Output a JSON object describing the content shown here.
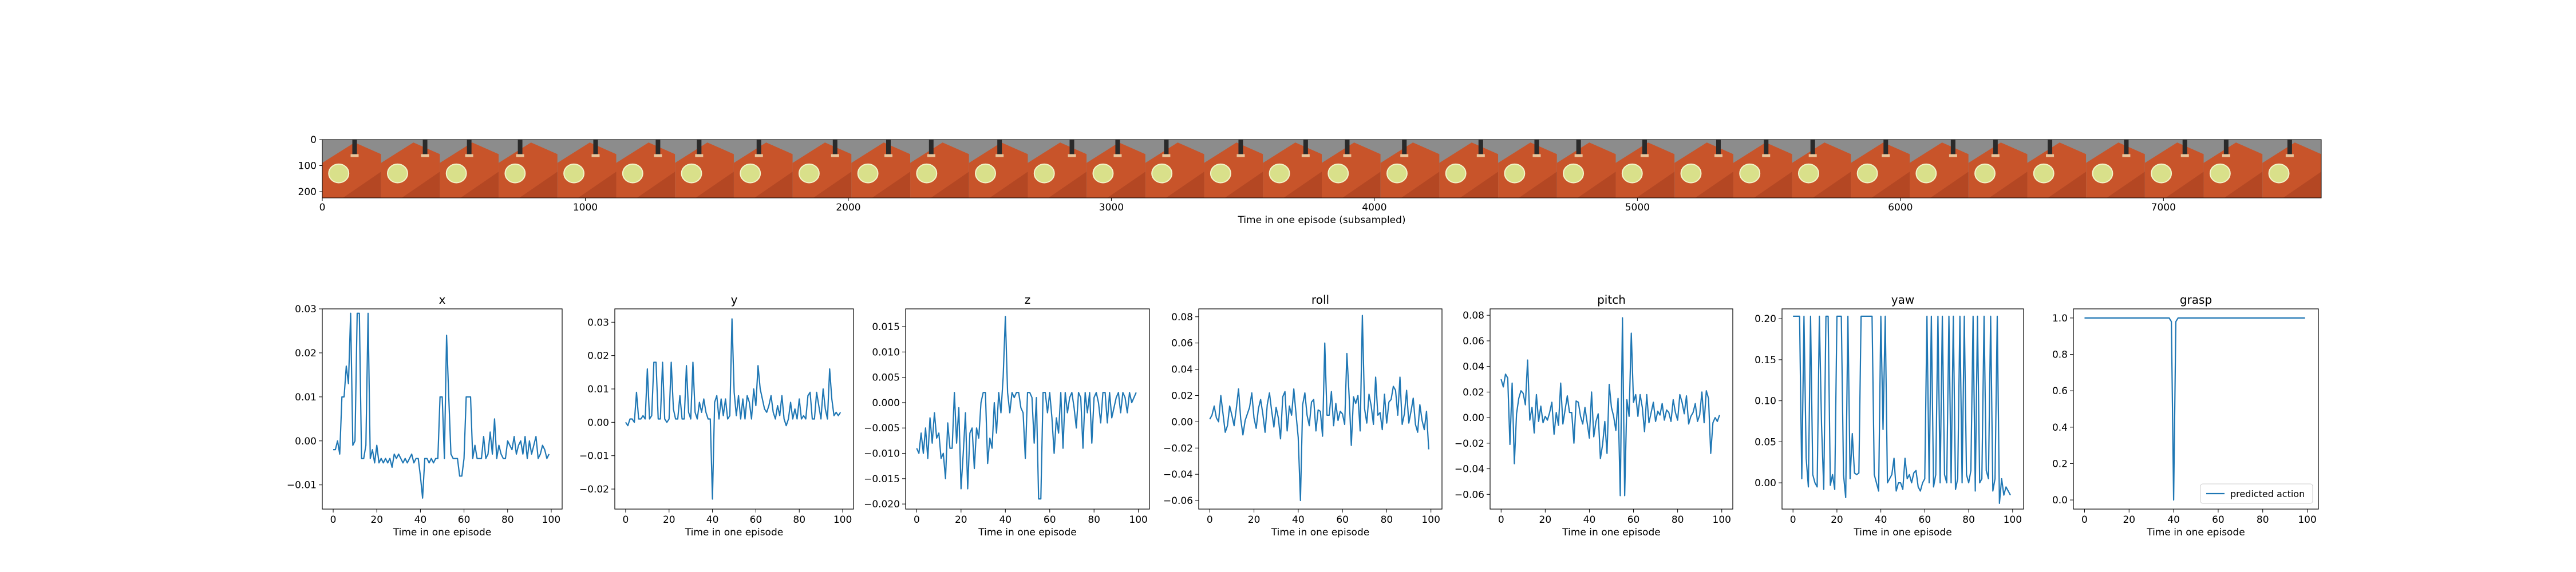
{
  "style": {
    "line_color": "#1f77b4",
    "frame_colors": {
      "bg": "#8c8c8c",
      "table": "#c8542a",
      "table_dark": "#a6401f",
      "plate": "#d9e08a",
      "plate_rim": "#f2f4c8",
      "gripper": "#2a2a2a"
    }
  },
  "image_strip": {
    "x_ticks": [
      "0",
      "1000",
      "2000",
      "3000",
      "4000",
      "5000",
      "6000",
      "7000"
    ],
    "y_ticks": [
      "0",
      "100",
      "200"
    ],
    "xlabel": "Time in one episode (subsampled)",
    "frame_count": 34
  },
  "chart_data": [
    {
      "type": "line",
      "title": "x",
      "xlabel": "Time in one episode",
      "xlim": [
        -5,
        105
      ],
      "ylim": [
        -0.0155,
        0.03
      ],
      "x_ticks": [
        "0",
        "20",
        "40",
        "60",
        "80",
        "100"
      ],
      "y_ticks": [
        {
          "v": -0.01,
          "label": "−0.01"
        },
        {
          "v": 0,
          "label": "0.00"
        },
        {
          "v": 0.01,
          "label": "0.01"
        },
        {
          "v": 0.02,
          "label": "0.02"
        },
        {
          "v": 0.03,
          "label": "0.03"
        }
      ],
      "series": [
        {
          "values": [
            -0.002,
            -0.002,
            0.0,
            -0.003,
            0.01,
            0.01,
            0.017,
            0.013,
            0.029,
            -0.001,
            0.0,
            0.029,
            0.029,
            -0.004,
            -0.004,
            -0.001,
            0.029,
            -0.004,
            -0.002,
            -0.005,
            -0.001,
            -0.005,
            -0.004,
            -0.005,
            -0.004,
            -0.005,
            -0.004,
            -0.006,
            -0.003,
            -0.004,
            -0.003,
            -0.004,
            -0.005,
            -0.004,
            -0.005,
            -0.004,
            -0.003,
            -0.005,
            -0.004,
            -0.004,
            -0.008,
            -0.013,
            -0.004,
            -0.004,
            -0.005,
            -0.004,
            -0.005,
            -0.004,
            -0.004,
            0.01,
            0.01,
            -0.004,
            0.024,
            0.01,
            -0.003,
            -0.004,
            -0.004,
            -0.004,
            -0.008,
            -0.008,
            -0.004,
            0.01,
            0.01,
            0.01,
            -0.004,
            -0.001,
            -0.004,
            -0.004,
            -0.004,
            0.001,
            -0.004,
            -0.003,
            0.002,
            -0.003,
            0.005,
            -0.004,
            -0.001,
            -0.003,
            -0.004,
            -0.004,
            0.0,
            -0.001,
            -0.002,
            0.001,
            -0.003,
            -0.001,
            0.0,
            -0.003,
            0.001,
            -0.004,
            0.0,
            -0.003,
            -0.001,
            0.001,
            -0.004,
            -0.003,
            -0.001,
            -0.002,
            -0.004,
            -0.003
          ]
        }
      ]
    },
    {
      "type": "line",
      "title": "y",
      "xlabel": "Time in one episode",
      "xlim": [
        -5,
        105
      ],
      "ylim": [
        -0.026,
        0.034
      ],
      "x_ticks": [
        "0",
        "20",
        "40",
        "60",
        "80",
        "100"
      ],
      "y_ticks": [
        {
          "v": -0.02,
          "label": "−0.02"
        },
        {
          "v": -0.01,
          "label": "−0.01"
        },
        {
          "v": 0,
          "label": "0.00"
        },
        {
          "v": 0.01,
          "label": "0.01"
        },
        {
          "v": 0.02,
          "label": "0.02"
        },
        {
          "v": 0.03,
          "label": "0.03"
        }
      ],
      "series": [
        {
          "values": [
            0.0,
            -0.001,
            0.001,
            0.001,
            0.0,
            0.009,
            0.001,
            0.001,
            0.002,
            0.001,
            0.016,
            0.001,
            0.002,
            0.018,
            0.018,
            0.001,
            0.001,
            0.018,
            0.001,
            0.0,
            0.001,
            0.018,
            0.004,
            0.001,
            0.001,
            0.008,
            0.001,
            0.001,
            0.017,
            0.003,
            0.001,
            0.018,
            0.003,
            0.001,
            0.006,
            0.003,
            0.007,
            0.003,
            0.001,
            0.001,
            -0.023,
            0.006,
            0.008,
            0.001,
            0.007,
            0.002,
            0.007,
            0.001,
            0.002,
            0.031,
            0.009,
            0.002,
            0.008,
            0.001,
            0.007,
            0.001,
            0.008,
            0.006,
            0.001,
            0.01,
            0.005,
            0.017,
            0.01,
            0.007,
            0.004,
            0.003,
            0.005,
            0.008,
            0.003,
            0.001,
            0.005,
            0.002,
            0.008,
            0.001,
            -0.001,
            0.001,
            0.006,
            0.001,
            0.004,
            0.001,
            0.007,
            0.001,
            0.002,
            0.001,
            0.008,
            0.009,
            0.001,
            0.001,
            0.009,
            0.005,
            0.001,
            0.01,
            0.004,
            0.001,
            0.016,
            0.007,
            0.002,
            0.003,
            0.002,
            0.003
          ]
        }
      ]
    },
    {
      "type": "line",
      "title": "z",
      "xlabel": "Time in one episode",
      "xlim": [
        -5,
        105
      ],
      "ylim": [
        -0.021,
        0.0185
      ],
      "x_ticks": [
        "0",
        "20",
        "40",
        "60",
        "80",
        "100"
      ],
      "y_ticks": [
        {
          "v": -0.02,
          "label": "−0.020"
        },
        {
          "v": -0.015,
          "label": "−0.015"
        },
        {
          "v": -0.01,
          "label": "−0.010"
        },
        {
          "v": -0.005,
          "label": "−0.005"
        },
        {
          "v": 0,
          "label": "0.000"
        },
        {
          "v": 0.005,
          "label": "0.005"
        },
        {
          "v": 0.01,
          "label": "0.010"
        },
        {
          "v": 0.015,
          "label": "0.015"
        }
      ],
      "series": [
        {
          "values": [
            -0.009,
            -0.01,
            -0.006,
            -0.01,
            -0.005,
            -0.011,
            -0.003,
            -0.008,
            -0.002,
            -0.007,
            -0.006,
            -0.011,
            -0.01,
            -0.015,
            -0.004,
            -0.009,
            -0.009,
            0.002,
            -0.008,
            -0.001,
            -0.017,
            -0.01,
            -0.002,
            -0.017,
            -0.006,
            -0.005,
            -0.013,
            -0.005,
            -0.007,
            0.0,
            0.002,
            0.002,
            -0.012,
            -0.007,
            -0.009,
            0.0,
            -0.006,
            0.002,
            -0.002,
            0.005,
            0.017,
            0.002,
            -0.002,
            0.002,
            0.001,
            0.002,
            0.002,
            -0.001,
            -0.002,
            -0.011,
            0.002,
            0.002,
            0.001,
            -0.008,
            0.001,
            -0.019,
            -0.019,
            0.002,
            0.002,
            -0.002,
            0.002,
            -0.003,
            -0.01,
            -0.003,
            -0.006,
            0.002,
            -0.009,
            0.002,
            -0.002,
            0.001,
            0.002,
            -0.001,
            -0.005,
            0.002,
            0.001,
            -0.009,
            0.002,
            -0.002,
            0.002,
            -0.008,
            0.001,
            0.002,
            0.0,
            -0.004,
            0.002,
            0.002,
            -0.004,
            0.002,
            -0.003,
            -0.001,
            0.001,
            0.002,
            -0.002,
            0.002,
            0.001,
            -0.002,
            0.002,
            0.0,
            0.001,
            0.002
          ]
        }
      ]
    },
    {
      "type": "line",
      "title": "roll",
      "xlabel": "Time in one episode",
      "xlim": [
        -5,
        105
      ],
      "ylim": [
        -0.0665,
        0.086
      ],
      "x_ticks": [
        "0",
        "20",
        "40",
        "60",
        "80",
        "100"
      ],
      "y_ticks": [
        {
          "v": -0.06,
          "label": "−0.06"
        },
        {
          "v": -0.04,
          "label": "−0.04"
        },
        {
          "v": -0.02,
          "label": "−0.02"
        },
        {
          "v": 0,
          "label": "0.00"
        },
        {
          "v": 0.02,
          "label": "0.02"
        },
        {
          "v": 0.04,
          "label": "0.04"
        },
        {
          "v": 0.06,
          "label": "0.06"
        },
        {
          "v": 0.08,
          "label": "0.08"
        }
      ],
      "series": [
        {
          "values": [
            0.002,
            0.005,
            0.012,
            0.003,
            0.0,
            0.02,
            0.006,
            -0.008,
            -0.003,
            0.012,
            0.005,
            -0.003,
            0.01,
            0.025,
            0.002,
            -0.01,
            0.001,
            0.006,
            0.011,
            0.022,
            0.003,
            -0.005,
            0.01,
            0.017,
            0.006,
            -0.008,
            0.013,
            0.022,
            0.008,
            -0.004,
            0.011,
            0.003,
            -0.013,
            0.019,
            0.023,
            -0.007,
            0.012,
            0.005,
            0.025,
            0.006,
            -0.012,
            -0.06,
            0.013,
            0.022,
            0.005,
            -0.003,
            0.015,
            0.017,
            -0.007,
            0.009,
            0.008,
            -0.011,
            0.06,
            0.005,
            0.005,
            0.023,
            -0.003,
            0.014,
            0.001,
            0.008,
            0.006,
            -0.002,
            0.052,
            0.02,
            -0.018,
            0.019,
            0.014,
            0.02,
            -0.007,
            0.081,
            0.01,
            -0.001,
            0.021,
            0.012,
            -0.002,
            0.034,
            0.005,
            0.007,
            -0.006,
            0.021,
            -0.001,
            0.015,
            0.017,
            0.027,
            0.024,
            0.005,
            0.034,
            -0.002,
            0.006,
            0.024,
            -0.001,
            0.008,
            0.018,
            -0.002,
            -0.008,
            0.013,
            0.001,
            -0.006,
            0.008,
            -0.021
          ]
        }
      ]
    },
    {
      "type": "line",
      "title": "pitch",
      "xlabel": "Time in one episode",
      "xlim": [
        -5,
        105
      ],
      "ylim": [
        -0.0715,
        0.085
      ],
      "x_ticks": [
        "0",
        "20",
        "40",
        "60",
        "80",
        "100"
      ],
      "y_ticks": [
        {
          "v": -0.06,
          "label": "−0.06"
        },
        {
          "v": -0.04,
          "label": "−0.04"
        },
        {
          "v": -0.02,
          "label": "−0.02"
        },
        {
          "v": 0,
          "label": "0.00"
        },
        {
          "v": 0.02,
          "label": "0.02"
        },
        {
          "v": 0.04,
          "label": "0.04"
        },
        {
          "v": 0.06,
          "label": "0.06"
        },
        {
          "v": 0.08,
          "label": "0.08"
        }
      ],
      "series": [
        {
          "values": [
            0.03,
            0.024,
            0.034,
            0.031,
            -0.021,
            0.027,
            -0.036,
            0.003,
            0.015,
            0.021,
            0.019,
            0.01,
            0.045,
            -0.002,
            0.008,
            -0.012,
            0.018,
            -0.003,
            0.009,
            -0.004,
            0.001,
            -0.002,
            0.004,
            0.012,
            -0.013,
            0.004,
            -0.006,
            0.027,
            -0.005,
            0.006,
            0.017,
            0.004,
            0.004,
            -0.02,
            0.013,
            0.012,
            0.001,
            -0.005,
            0.008,
            -0.004,
            -0.016,
            0.02,
            -0.015,
            -0.003,
            0.003,
            -0.032,
            -0.021,
            -0.003,
            -0.028,
            0.026,
            0.008,
            0.001,
            -0.01,
            0.015,
            -0.061,
            0.078,
            -0.061,
            0.014,
            0.001,
            0.066,
            0.012,
            0.018,
            0.001,
            0.018,
            0.008,
            -0.011,
            0.018,
            -0.004,
            0.004,
            0.012,
            -0.003,
            0.005,
            0.002,
            0.011,
            -0.002,
            0.006,
            0.004,
            -0.003,
            0.014,
            0.004,
            -0.002,
            0.018,
            0.012,
            0.003,
            0.017,
            -0.005,
            0.001,
            0.004,
            0.011,
            -0.003,
            0.002,
            0.02,
            -0.004,
            0.021,
            0.015,
            -0.028,
            -0.004,
            0.0,
            -0.003,
            0.002
          ]
        }
      ]
    },
    {
      "type": "line",
      "title": "yaw",
      "xlabel": "Time in one episode",
      "xlim": [
        -5,
        105
      ],
      "ylim": [
        -0.032,
        0.212
      ],
      "x_ticks": [
        "0",
        "20",
        "40",
        "60",
        "80",
        "100"
      ],
      "y_ticks": [
        {
          "v": 0,
          "label": "0.00"
        },
        {
          "v": 0.05,
          "label": "0.05"
        },
        {
          "v": 0.1,
          "label": "0.10"
        },
        {
          "v": 0.15,
          "label": "0.15"
        },
        {
          "v": 0.2,
          "label": "0.20"
        }
      ],
      "series": [
        {
          "values": [
            0.203,
            0.203,
            0.203,
            0.203,
            0.005,
            0.203,
            0.03,
            -0.005,
            0.203,
            0.01,
            0.0,
            -0.005,
            0.203,
            0.07,
            -0.008,
            0.203,
            0.203,
            -0.003,
            0.01,
            -0.008,
            0.203,
            0.203,
            0.203,
            0.01,
            -0.018,
            0.203,
            0.005,
            0.06,
            0.012,
            0.01,
            0.012,
            0.203,
            0.203,
            0.203,
            0.203,
            0.203,
            0.203,
            0.01,
            0.0,
            -0.01,
            0.203,
            0.065,
            0.203,
            0.0,
            0.005,
            0.01,
            0.03,
            -0.01,
            0.0,
            0.0,
            -0.008,
            0.03,
            0.005,
            0.01,
            0.0,
            0.012,
            0.015,
            -0.005,
            -0.01,
            0.0,
            0.005,
            0.203,
            0.0,
            0.203,
            -0.005,
            0.01,
            0.203,
            0.0,
            0.203,
            0.01,
            0.0,
            0.203,
            0.0,
            0.203,
            -0.008,
            0.005,
            0.203,
            0.0,
            0.203,
            0.01,
            0.0,
            0.015,
            0.203,
            -0.01,
            0.203,
            0.0,
            0.005,
            0.203,
            0.015,
            0.005,
            0.203,
            -0.01,
            0.005,
            0.203,
            -0.025,
            0.005,
            -0.015,
            -0.005,
            -0.01,
            -0.015
          ]
        }
      ]
    },
    {
      "type": "line",
      "title": "grasp",
      "xlabel": "Time in one episode",
      "xlim": [
        -5,
        105
      ],
      "ylim": [
        -0.05,
        1.05
      ],
      "x_ticks": [
        "0",
        "20",
        "40",
        "60",
        "80",
        "100"
      ],
      "y_ticks": [
        {
          "v": 0,
          "label": "0.0"
        },
        {
          "v": 0.2,
          "label": "0.2"
        },
        {
          "v": 0.4,
          "label": "0.4"
        },
        {
          "v": 0.6,
          "label": "0.6"
        },
        {
          "v": 0.8,
          "label": "0.8"
        },
        {
          "v": 1,
          "label": "1.0"
        }
      ],
      "legend": "predicted action",
      "legend_loc": "lower right",
      "series": [
        {
          "name": "predicted action",
          "values": [
            1,
            1,
            1,
            1,
            1,
            1,
            1,
            1,
            1,
            1,
            1,
            1,
            1,
            1,
            1,
            1,
            1,
            1,
            1,
            1,
            1,
            1,
            1,
            1,
            1,
            1,
            1,
            1,
            1,
            1,
            1,
            1,
            1,
            1,
            1,
            1,
            1,
            1,
            1,
            0.98,
            0.0,
            0.98,
            1,
            1,
            1,
            1,
            1,
            1,
            1,
            1,
            1,
            1,
            1,
            1,
            1,
            1,
            1,
            1,
            1,
            1,
            1,
            1,
            1,
            1,
            1,
            1,
            1,
            1,
            1,
            1,
            1,
            1,
            1,
            1,
            1,
            1,
            1,
            1,
            1,
            1,
            1,
            1,
            1,
            1,
            1,
            1,
            1,
            1,
            1,
            1,
            1,
            1,
            1,
            1,
            1,
            1,
            1,
            1,
            1,
            1
          ]
        }
      ]
    }
  ]
}
